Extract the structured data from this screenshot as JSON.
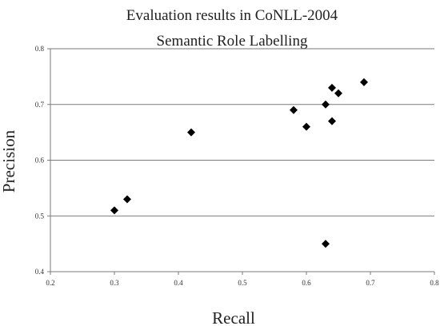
{
  "chart_data": {
    "type": "scatter",
    "title": [
      "Evaluation results in CoNLL-2004",
      "Semantic Role Labelling"
    ],
    "xlabel": "Recall",
    "ylabel": "Precision",
    "xlim": [
      0.2,
      0.8
    ],
    "ylim": [
      0.4,
      0.8
    ],
    "xticks": [
      "0.2",
      "0.3",
      "0.4",
      "0.5",
      "0.6",
      "0.7",
      "0.8"
    ],
    "yticks": [
      "0.4",
      "0.5",
      "0.6",
      "0.7",
      "0.8"
    ],
    "grid": "horizontal",
    "marker": "diamond",
    "points": [
      {
        "x": 0.3,
        "y": 0.51
      },
      {
        "x": 0.32,
        "y": 0.53
      },
      {
        "x": 0.42,
        "y": 0.65
      },
      {
        "x": 0.58,
        "y": 0.69
      },
      {
        "x": 0.6,
        "y": 0.66
      },
      {
        "x": 0.63,
        "y": 0.7
      },
      {
        "x": 0.64,
        "y": 0.73
      },
      {
        "x": 0.65,
        "y": 0.72
      },
      {
        "x": 0.64,
        "y": 0.67
      },
      {
        "x": 0.69,
        "y": 0.74
      },
      {
        "x": 0.63,
        "y": 0.45
      }
    ]
  }
}
